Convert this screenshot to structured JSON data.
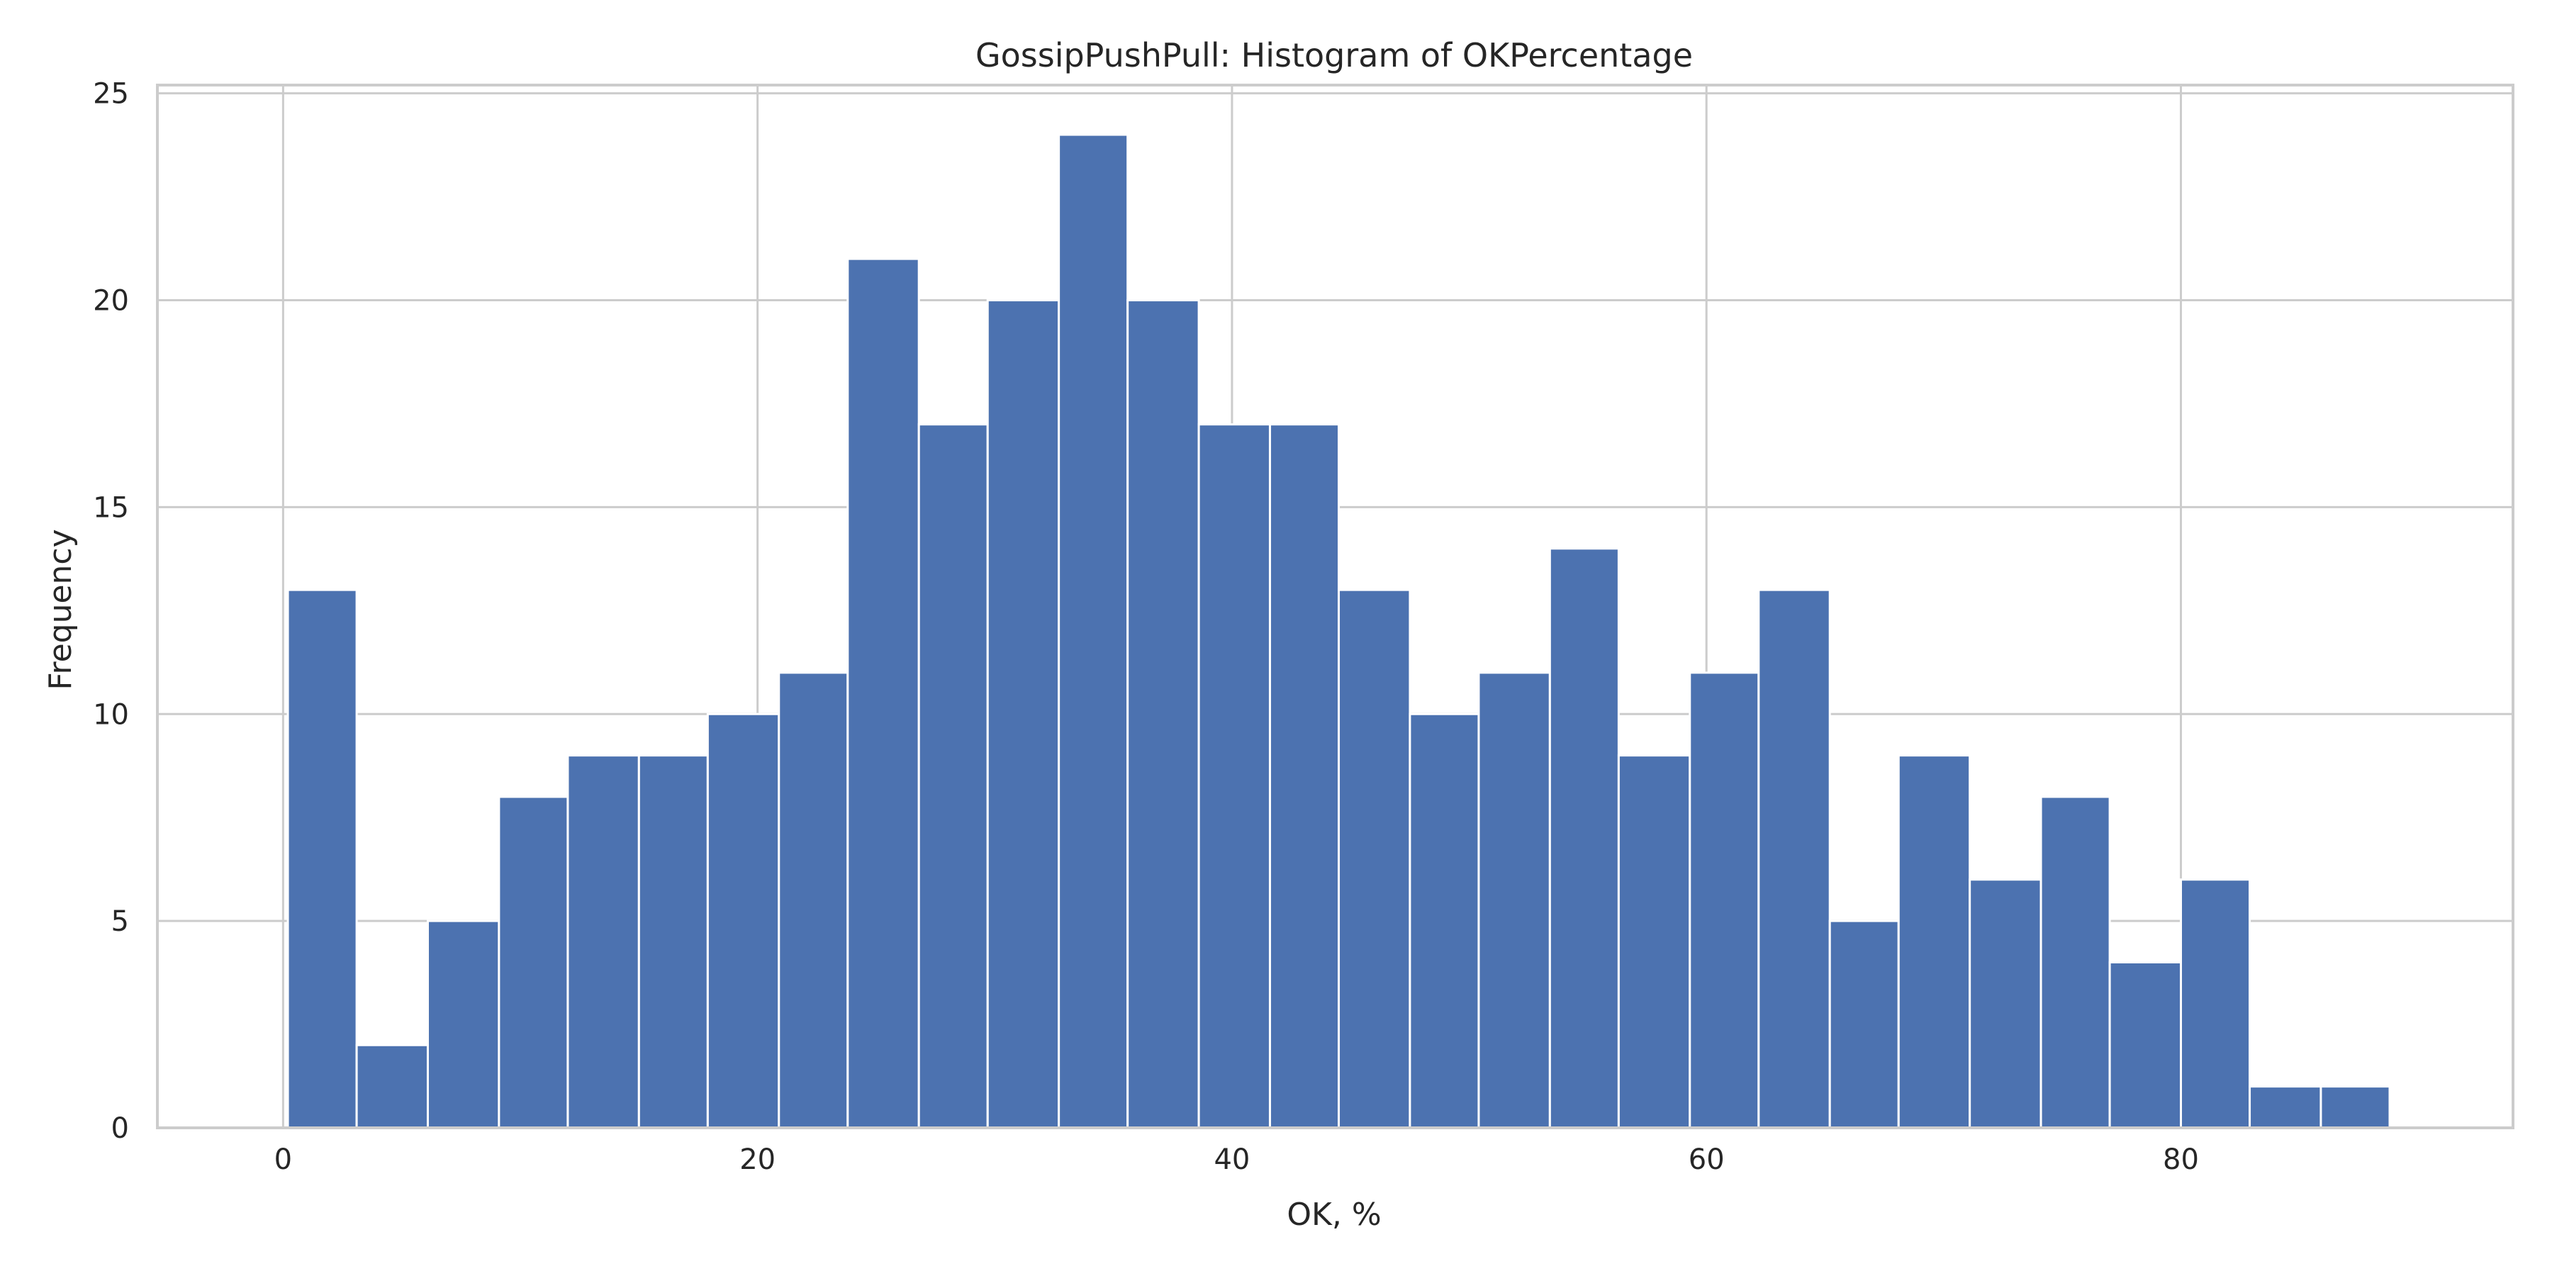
{
  "chart_data": {
    "type": "bar",
    "title": "GossipPushPull: Histogram of OKPercentage",
    "xlabel": "OK, %",
    "ylabel": "Frequency",
    "xlim": [
      -5.3,
      94
    ],
    "ylim": [
      0,
      25.2
    ],
    "xticks": [
      0,
      20,
      40,
      60,
      80
    ],
    "yticks": [
      0,
      5,
      10,
      15,
      20,
      25
    ],
    "grid": true,
    "bar_color": "#4c72b0",
    "bins": [
      {
        "x0": 0.2,
        "x1": 3.1,
        "value": 13
      },
      {
        "x0": 3.1,
        "x1": 6.1,
        "value": 2
      },
      {
        "x0": 6.1,
        "x1": 9.1,
        "value": 5
      },
      {
        "x0": 9.1,
        "x1": 12.0,
        "value": 8
      },
      {
        "x0": 12.0,
        "x1": 15.0,
        "value": 9
      },
      {
        "x0": 15.0,
        "x1": 17.9,
        "value": 9
      },
      {
        "x0": 17.9,
        "x1": 20.9,
        "value": 10
      },
      {
        "x0": 20.9,
        "x1": 23.8,
        "value": 11
      },
      {
        "x0": 23.8,
        "x1": 26.8,
        "value": 21
      },
      {
        "x0": 26.8,
        "x1": 29.7,
        "value": 17
      },
      {
        "x0": 29.7,
        "x1": 32.7,
        "value": 20
      },
      {
        "x0": 32.7,
        "x1": 35.6,
        "value": 24
      },
      {
        "x0": 35.6,
        "x1": 38.6,
        "value": 20
      },
      {
        "x0": 38.6,
        "x1": 41.6,
        "value": 17
      },
      {
        "x0": 41.6,
        "x1": 44.5,
        "value": 17
      },
      {
        "x0": 44.5,
        "x1": 47.5,
        "value": 13
      },
      {
        "x0": 47.5,
        "x1": 50.4,
        "value": 10
      },
      {
        "x0": 50.4,
        "x1": 53.4,
        "value": 11
      },
      {
        "x0": 53.4,
        "x1": 56.3,
        "value": 14
      },
      {
        "x0": 56.3,
        "x1": 59.3,
        "value": 9
      },
      {
        "x0": 59.3,
        "x1": 62.2,
        "value": 11
      },
      {
        "x0": 62.2,
        "x1": 65.2,
        "value": 13
      },
      {
        "x0": 65.2,
        "x1": 68.1,
        "value": 5
      },
      {
        "x0": 68.1,
        "x1": 71.1,
        "value": 9
      },
      {
        "x0": 71.1,
        "x1": 74.1,
        "value": 6
      },
      {
        "x0": 74.1,
        "x1": 77.0,
        "value": 8
      },
      {
        "x0": 77.0,
        "x1": 80.0,
        "value": 4
      },
      {
        "x0": 80.0,
        "x1": 82.9,
        "value": 6
      },
      {
        "x0": 82.9,
        "x1": 85.9,
        "value": 1
      },
      {
        "x0": 85.9,
        "x1": 88.8,
        "value": 1
      }
    ]
  }
}
